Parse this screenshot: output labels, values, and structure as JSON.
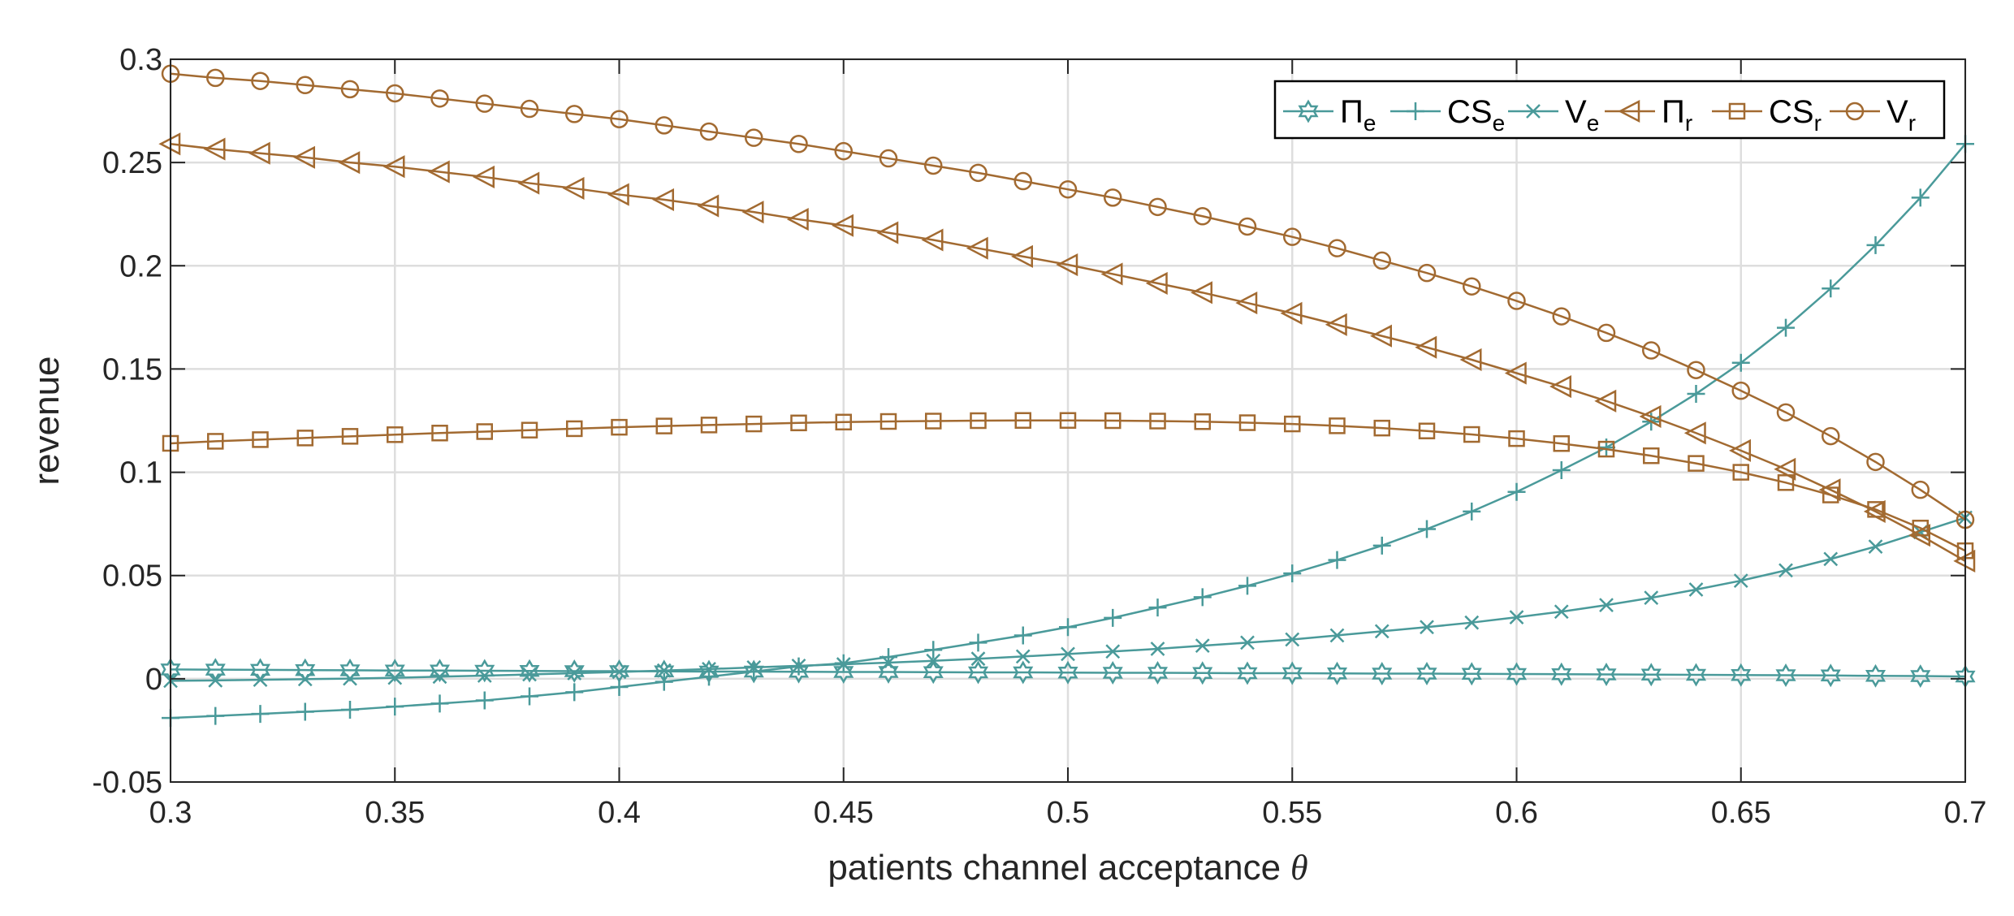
{
  "chart_data": {
    "type": "line",
    "title": "",
    "xlabel": "patients channel acceptance",
    "xlabel_symbol": "θ",
    "ylabel": "revenue",
    "xlim": [
      0.3,
      0.7
    ],
    "ylim": [
      -0.05,
      0.3
    ],
    "xticks": [
      0.3,
      0.35,
      0.4,
      0.45,
      0.5,
      0.55,
      0.6,
      0.65,
      0.7
    ],
    "xtick_labels": [
      "0.3",
      "0.35",
      "0.4",
      "0.45",
      "0.5",
      "0.55",
      "0.6",
      "0.65",
      "0.7"
    ],
    "yticks": [
      -0.05,
      0,
      0.05,
      0.1,
      0.15,
      0.2,
      0.25,
      0.3
    ],
    "ytick_labels": [
      "-0.05",
      "0",
      "0.05",
      "0.1",
      "0.15",
      "0.2",
      "0.25",
      "0.3"
    ],
    "grid": true,
    "legend_position": "top-right",
    "x_start": 0.3,
    "x_step": 0.01,
    "series": [
      {
        "name": "Π_e",
        "label_main": "Π",
        "label_sub": "e",
        "color": "#4a9a9a",
        "marker": "hexagram",
        "values": [
          0.0045,
          0.0044,
          0.0043,
          0.0042,
          0.0041,
          0.004,
          0.004,
          0.0039,
          0.0038,
          0.0037,
          0.0037,
          0.0036,
          0.0035,
          0.0035,
          0.0034,
          0.0033,
          0.0033,
          0.0032,
          0.0031,
          0.0031,
          0.003,
          0.0029,
          0.0029,
          0.0028,
          0.0027,
          0.0027,
          0.0026,
          0.0025,
          0.0025,
          0.0024,
          0.0023,
          0.0022,
          0.0021,
          0.002,
          0.0019,
          0.0018,
          0.0017,
          0.0016,
          0.0014,
          0.0013,
          0.0011
        ]
      },
      {
        "name": "CS_e",
        "label_main": "CS",
        "label_sub": "e",
        "color": "#4a9a9a",
        "marker": "plus",
        "values": [
          -0.019,
          -0.018,
          -0.017,
          -0.016,
          -0.015,
          -0.0135,
          -0.012,
          -0.0105,
          -0.0085,
          -0.0065,
          -0.004,
          -0.0015,
          0.001,
          0.0035,
          0.006,
          0.0075,
          0.0105,
          0.014,
          0.0175,
          0.021,
          0.025,
          0.0295,
          0.0345,
          0.0395,
          0.045,
          0.051,
          0.0575,
          0.0645,
          0.0725,
          0.081,
          0.0905,
          0.101,
          0.112,
          0.1245,
          0.138,
          0.153,
          0.17,
          0.189,
          0.21,
          0.233,
          0.259
        ]
      },
      {
        "name": "V_e",
        "label_main": "V",
        "label_sub": "e",
        "color": "#4a9a9a",
        "marker": "x",
        "values": [
          -0.001,
          -0.0008,
          -0.0005,
          -0.0002,
          0.0001,
          0.0005,
          0.001,
          0.0015,
          0.0021,
          0.0027,
          0.0033,
          0.004,
          0.0047,
          0.0055,
          0.0063,
          0.007,
          0.0078,
          0.0087,
          0.0097,
          0.0108,
          0.012,
          0.0132,
          0.0145,
          0.016,
          0.0175,
          0.019,
          0.021,
          0.023,
          0.025,
          0.0272,
          0.0298,
          0.0325,
          0.0357,
          0.0392,
          0.0432,
          0.0475,
          0.0525,
          0.058,
          0.064,
          0.071,
          0.078
        ]
      },
      {
        "name": "Π_r",
        "label_main": "Π",
        "label_sub": "r",
        "color": "#a26a31",
        "marker": "triangle-left",
        "values": [
          0.259,
          0.2565,
          0.2545,
          0.2525,
          0.25,
          0.248,
          0.2455,
          0.243,
          0.24,
          0.2375,
          0.2345,
          0.232,
          0.229,
          0.226,
          0.2225,
          0.2195,
          0.216,
          0.2125,
          0.2085,
          0.2045,
          0.2005,
          0.196,
          0.1915,
          0.187,
          0.182,
          0.177,
          0.1715,
          0.166,
          0.1605,
          0.1545,
          0.148,
          0.1415,
          0.1345,
          0.127,
          0.119,
          0.1105,
          0.1015,
          0.0915,
          0.081,
          0.0695,
          0.057
        ]
      },
      {
        "name": "CS_r",
        "label_main": "CS",
        "label_sub": "r",
        "color": "#a26a31",
        "marker": "square",
        "values": [
          0.114,
          0.115,
          0.1158,
          0.1166,
          0.1174,
          0.1182,
          0.119,
          0.1197,
          0.1204,
          0.1211,
          0.1218,
          0.1224,
          0.1229,
          0.1234,
          0.1239,
          0.1243,
          0.1246,
          0.1248,
          0.125,
          0.1251,
          0.1251,
          0.125,
          0.1248,
          0.1245,
          0.124,
          0.1234,
          0.1225,
          0.1214,
          0.12,
          0.1183,
          0.1163,
          0.1139,
          0.1112,
          0.108,
          0.1043,
          0.1,
          0.095,
          0.089,
          0.082,
          0.073,
          0.062
        ]
      },
      {
        "name": "V_r",
        "label_main": "V",
        "label_sub": "r",
        "color": "#a26a31",
        "marker": "circle",
        "values": [
          0.293,
          0.291,
          0.2895,
          0.2875,
          0.2855,
          0.2835,
          0.281,
          0.2785,
          0.276,
          0.2735,
          0.271,
          0.268,
          0.265,
          0.262,
          0.259,
          0.2555,
          0.252,
          0.2485,
          0.245,
          0.241,
          0.237,
          0.233,
          0.2285,
          0.224,
          0.219,
          0.214,
          0.2085,
          0.2025,
          0.1965,
          0.19,
          0.183,
          0.1755,
          0.1675,
          0.159,
          0.1495,
          0.1395,
          0.129,
          0.1175,
          0.105,
          0.0915,
          0.077
        ]
      }
    ]
  }
}
